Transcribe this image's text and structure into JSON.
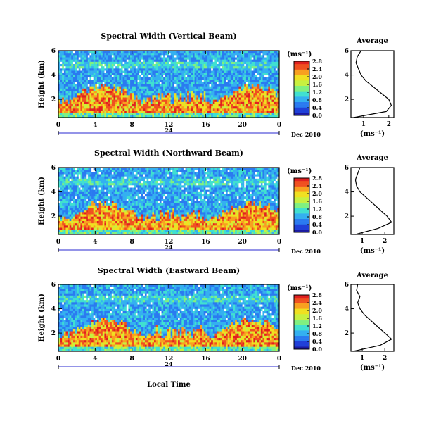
{
  "date_label": "Dec 2010",
  "xlabel": "Local Time",
  "ylabel": "Height (km)",
  "unit_label": "(ms⁻¹)",
  "profile_title": "Average",
  "profile_xlabel": "(ms⁻¹)",
  "day_label": "24",
  "colormap": [
    "#1a1aa0",
    "#2040d8",
    "#2a7af0",
    "#34b0f0",
    "#40e0d0",
    "#80f080",
    "#c8f040",
    "#f0e020",
    "#f8a020",
    "#f05020",
    "#e02020"
  ],
  "chart_data": [
    {
      "type": "heatmap",
      "title": "Spectral Width (Vertical Beam)",
      "xlabel": "Local Time",
      "ylabel": "Height (km)",
      "x_ticks": [
        "0",
        "4",
        "8",
        "12",
        "16",
        "20",
        "0"
      ],
      "xlim": [
        0,
        24
      ],
      "y_ticks": [
        "2",
        "4",
        "6"
      ],
      "ylim": [
        0.5,
        6
      ],
      "colorbar_ticks": [
        "0.0",
        "0.4",
        "0.8",
        "1.2",
        "1.6",
        "2.0",
        "2.4",
        "2.8"
      ],
      "colorbar_range": [
        0.0,
        2.8
      ],
      "average_profile": {
        "x_ticks": [
          "1",
          "2"
        ],
        "xlim": [
          0.5,
          2.2
        ],
        "y_ticks": [
          "2",
          "4",
          "6"
        ],
        "height_km": [
          0.5,
          1.0,
          1.5,
          2.0,
          2.5,
          3.0,
          3.5,
          4.0,
          4.5,
          5.0,
          5.5,
          6.0
        ],
        "width": [
          0.6,
          1.9,
          2.1,
          2.0,
          1.7,
          1.4,
          1.1,
          0.9,
          0.8,
          0.7,
          0.75,
          0.9
        ]
      }
    },
    {
      "type": "heatmap",
      "title": "Spectral Width (Northward Beam)",
      "xlabel": "Local Time",
      "ylabel": "Height (km)",
      "x_ticks": [
        "0",
        "4",
        "8",
        "12",
        "16",
        "20",
        "0"
      ],
      "xlim": [
        0,
        24
      ],
      "y_ticks": [
        "2",
        "4",
        "6"
      ],
      "ylim": [
        0.5,
        6
      ],
      "colorbar_ticks": [
        "0.0",
        "0.4",
        "0.8",
        "1.2",
        "1.6",
        "2.0",
        "2.4",
        "2.8"
      ],
      "colorbar_range": [
        0.0,
        2.8
      ],
      "average_profile": {
        "x_ticks": [
          "1",
          "2"
        ],
        "xlim": [
          0.5,
          2.4
        ],
        "y_ticks": [
          "2",
          "4",
          "6"
        ],
        "height_km": [
          0.5,
          1.0,
          1.5,
          2.0,
          2.5,
          3.0,
          3.5,
          4.0,
          4.5,
          5.0,
          5.5,
          6.0
        ],
        "width": [
          0.7,
          1.7,
          2.3,
          2.1,
          1.8,
          1.5,
          1.2,
          0.9,
          0.75,
          0.7,
          0.8,
          0.9
        ]
      }
    },
    {
      "type": "heatmap",
      "title": "Spectral Width (Eastward Beam)",
      "xlabel": "Local Time",
      "ylabel": "Height (km)",
      "x_ticks": [
        "0",
        "4",
        "8",
        "12",
        "16",
        "20",
        "0"
      ],
      "xlim": [
        0,
        24
      ],
      "y_ticks": [
        "2",
        "4",
        "6"
      ],
      "ylim": [
        0.5,
        6
      ],
      "colorbar_ticks": [
        "0.0",
        "0.4",
        "0.8",
        "1.2",
        "1.6",
        "2.0",
        "2.4",
        "2.8"
      ],
      "colorbar_range": [
        0.0,
        2.8
      ],
      "average_profile": {
        "x_ticks": [
          "1",
          "2"
        ],
        "xlim": [
          0.5,
          2.4
        ],
        "y_ticks": [
          "2",
          "4",
          "6"
        ],
        "height_km": [
          0.5,
          1.0,
          1.5,
          2.0,
          2.5,
          3.0,
          3.5,
          4.0,
          4.5,
          5.0,
          5.5,
          6.0
        ],
        "width": [
          0.6,
          1.8,
          2.3,
          2.0,
          1.7,
          1.4,
          1.1,
          0.9,
          0.8,
          0.9,
          0.75,
          0.8
        ]
      }
    }
  ]
}
